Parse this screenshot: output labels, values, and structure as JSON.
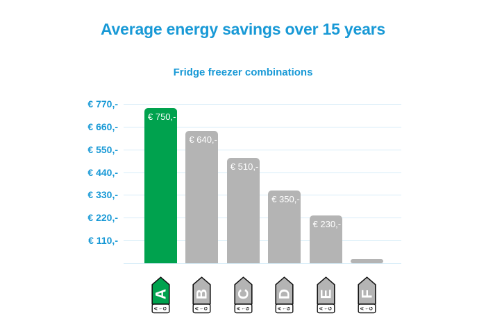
{
  "title": "Average energy savings over 15 years",
  "subtitle": "Fridge freezer combinations",
  "colors": {
    "accent_blue": "#1899d6",
    "bar_green": "#00a24e",
    "bar_gray": "#b4b4b4",
    "gridline_blue": "#d6ecf8",
    "bar_label_white": "#ffffff",
    "tag_outline_black": "#111111",
    "background_white": "#ffffff"
  },
  "chart_data": {
    "type": "bar",
    "title": "Average energy savings over 15 years",
    "subtitle": "Fridge freezer combinations",
    "categories": [
      "A",
      "B",
      "C",
      "D",
      "E",
      "F"
    ],
    "values": [
      750,
      640,
      510,
      350,
      230,
      20
    ],
    "bar_labels": [
      "€ 750,-",
      "€ 640,-",
      "€ 510,-",
      "€ 350,-",
      "€ 230,-",
      ""
    ],
    "highlighted_category": "A",
    "ylim": [
      0,
      770
    ],
    "y_ticks": [
      {
        "value": 770,
        "label": "€ 770,-"
      },
      {
        "value": 660,
        "label": "€ 660,-"
      },
      {
        "value": 550,
        "label": "€ 550,-"
      },
      {
        "value": 440,
        "label": "€ 440,-"
      },
      {
        "value": 330,
        "label": "€ 330,-"
      },
      {
        "value": 220,
        "label": "€ 220,-"
      },
      {
        "value": 110,
        "label": "€ 110,-"
      },
      {
        "value": 0,
        "label": ""
      }
    ],
    "grid": "horizontal",
    "legend": "none",
    "x_axis_tags": {
      "style": "eu-energy-label",
      "letters": [
        "A",
        "B",
        "C",
        "D",
        "E",
        "F"
      ],
      "scale_text": "A←G"
    }
  }
}
